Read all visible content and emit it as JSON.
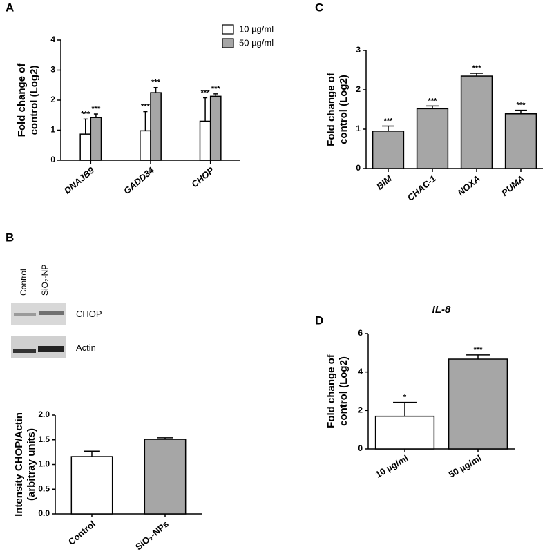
{
  "chart_data": [
    {
      "type": "bar",
      "panel": "A",
      "ylabel": [
        "Fold change of",
        "control (Log2)"
      ],
      "categories": [
        "DNAJB9",
        "GADD34",
        "CHOP"
      ],
      "series": [
        {
          "name": "10 µg/ml",
          "color": "#ffffff",
          "values": [
            0.87,
            0.98,
            1.3
          ],
          "errors": [
            0.5,
            0.64,
            0.78
          ],
          "significance": [
            "***",
            "***",
            "***"
          ]
        },
        {
          "name": "50 µg/ml",
          "color": "#a6a6a6",
          "values": [
            1.42,
            2.25,
            2.13
          ],
          "errors": [
            0.12,
            0.17,
            0.08
          ],
          "significance": [
            "***",
            "***",
            "***"
          ]
        }
      ],
      "ylim": [
        0,
        4
      ],
      "yticks": [
        0,
        1,
        2,
        3,
        4
      ],
      "italic_categories": true,
      "legend": "top-right"
    },
    {
      "type": "bar",
      "panel": "B",
      "ylabel": [
        "Intensity CHOP/Actin",
        "(arbitray units)"
      ],
      "categories": [
        "Control",
        "SiO₂-NPs"
      ],
      "series": [
        {
          "colors": [
            "#ffffff",
            "#a6a6a6"
          ],
          "values": [
            1.16,
            1.51
          ],
          "errors": [
            0.11,
            0.03
          ]
        }
      ],
      "ylim": [
        0,
        2
      ],
      "yticks": [
        {
          "value": 0,
          "label": "0.0"
        },
        {
          "value": 0.5,
          "label": "0.5"
        },
        {
          "value": 1,
          "label": "1.0"
        },
        {
          "value": 1.5,
          "label": "1.5"
        },
        {
          "value": 2,
          "label": "2.0"
        }
      ]
    },
    {
      "type": "bar",
      "panel": "C",
      "ylabel": [
        "Fold change of",
        "control (Log2)"
      ],
      "categories": [
        "BIM",
        "CHAC-1",
        "NOXA",
        "PUMA"
      ],
      "series": [
        {
          "color": "#a6a6a6",
          "values": [
            0.95,
            1.52,
            2.35,
            1.39
          ],
          "errors": [
            0.13,
            0.07,
            0.07,
            0.09
          ],
          "significance": [
            "***",
            "***",
            "***",
            "***"
          ]
        }
      ],
      "ylim": [
        0,
        3
      ],
      "yticks": [
        0,
        1,
        2,
        3
      ],
      "italic_categories": true
    },
    {
      "type": "bar",
      "panel": "D",
      "title": "IL-8",
      "ylabel": [
        "Fold change of",
        "control (Log2)"
      ],
      "categories": [
        "10 µg/ml",
        "50 µg/ml"
      ],
      "series": [
        {
          "colors": [
            "#ffffff",
            "#a6a6a6"
          ],
          "values": [
            1.7,
            4.67
          ],
          "errors": [
            0.72,
            0.22
          ],
          "significance": [
            "*",
            "***"
          ]
        }
      ],
      "ylim": [
        0,
        6
      ],
      "yticks": [
        0,
        2,
        4,
        6
      ]
    }
  ],
  "blot": {
    "lanes": [
      "Control",
      "SiO₂-NP"
    ],
    "rows": [
      "CHOP",
      "Actin"
    ]
  }
}
